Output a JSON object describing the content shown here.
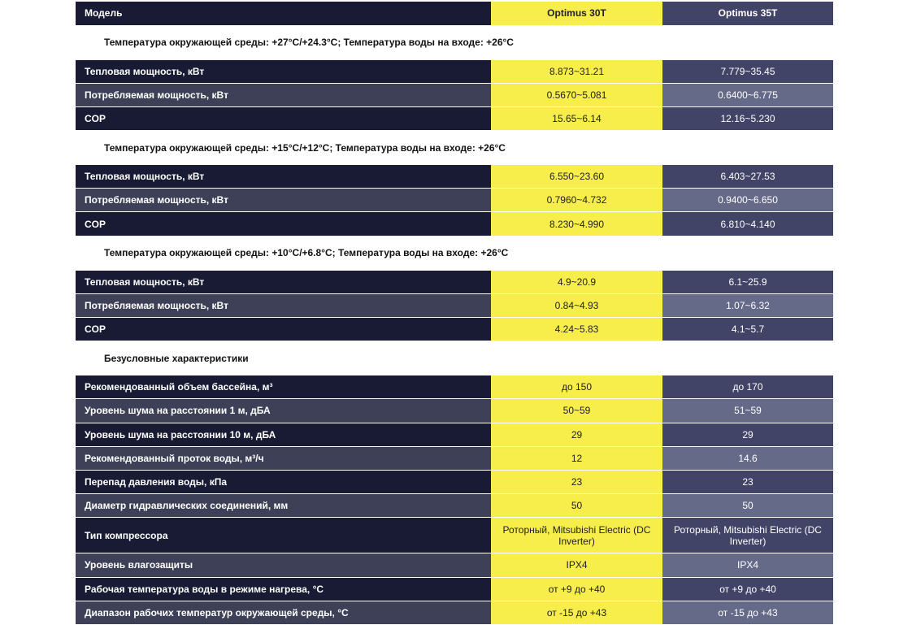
{
  "header": {
    "label": "Модель",
    "col_a": "Optimus 30T",
    "col_b": "Optimus 35T"
  },
  "sections": [
    {
      "title": "Температура окружающей среды: +27°C/+24.3°C; Температура воды на входе: +26°C",
      "rows": [
        {
          "label": "Тепловая мощность, кВт",
          "a": "8.873~31.21",
          "b": "7.779~35.45"
        },
        {
          "label": "Потребляемая мощность, кВт",
          "a": "0.5670~5.081",
          "b": "0.6400~6.775"
        },
        {
          "label": "COP",
          "a": "15.65~6.14",
          "b": "12.16~5.230"
        }
      ]
    },
    {
      "title": "Температура окружающей среды: +15°C/+12°C; Температура воды на входе: +26°C",
      "rows": [
        {
          "label": "Тепловая мощность, кВт",
          "a": "6.550~23.60",
          "b": "6.403~27.53"
        },
        {
          "label": "Потребляемая мощность, кВт",
          "a": "0.7960~4.732",
          "b": "0.9400~6.650"
        },
        {
          "label": "COP",
          "a": "8.230~4.990",
          "b": "6.810~4.140"
        }
      ]
    },
    {
      "title": "Температура окружающей среды: +10°C/+6.8°C; Температура воды на входе: +26°C",
      "rows": [
        {
          "label": "Тепловая мощность, кВт",
          "a": "4.9~20.9",
          "b": "6.1~25.9"
        },
        {
          "label": "Потребляемая мощность, кВт",
          "a": "0.84~4.93",
          "b": "1.07~6.32"
        },
        {
          "label": "COP",
          "a": "4.24~5.83",
          "b": "4.1~5.7"
        }
      ]
    },
    {
      "title": "Безусловные характеристики",
      "rows": [
        {
          "label": "Рекомендованный объем бассейна, м³",
          "a": "до 150",
          "b": "до 170"
        },
        {
          "label": "Уровень шума на расстоянии 1 м, дБА",
          "a": "50~59",
          "b": "51~59"
        },
        {
          "label": "Уровень шума на расстоянии 10 м, дБА",
          "a": "29",
          "b": "29"
        },
        {
          "label": "Рекомендованный проток воды, м³/ч",
          "a": "12",
          "b": "14.6"
        },
        {
          "label": "Перепад давления воды, кПа",
          "a": "23",
          "b": "23"
        },
        {
          "label": "Диаметр гидравлических соединений, мм",
          "a": "50",
          "b": "50"
        },
        {
          "label": "Тип компрессора",
          "a": "Роторный, Mitsubishi Electric (DC Inverter)",
          "b": "Роторный, Mitsubishi Electric (DC Inverter)"
        },
        {
          "label": "Уровень влагозащиты",
          "a": "IPX4",
          "b": "IPX4"
        },
        {
          "label": "Рабочая температура воды в режиме нагрева, °C",
          "a": "от +9 до +40",
          "b": "от +9 до +40"
        },
        {
          "label": "Диапазон рабочих температур окружающей среды, °C",
          "a": "от -15 до +43",
          "b": "от -15 до +43"
        }
      ]
    }
  ],
  "colors": {
    "dark_row": "#181b33",
    "light_row": "#3d4057",
    "accent_yellow": "#f7ed4b",
    "col_b_dark": "#414467",
    "col_b_light": "#666a89"
  }
}
